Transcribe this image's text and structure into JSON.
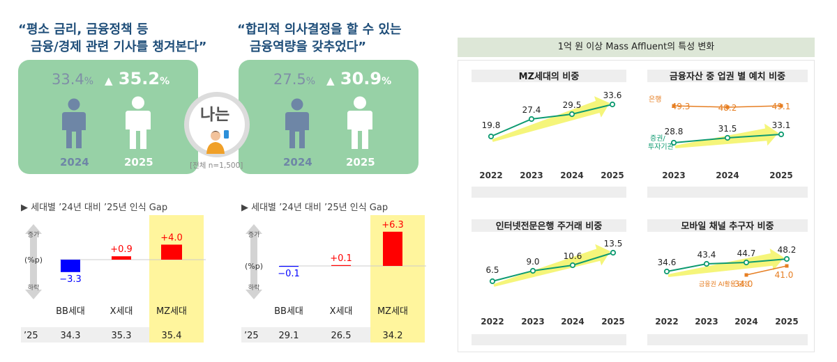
{
  "left": {
    "quote1_line1": "“평소 금리, 금융정책 등",
    "quote1_line2": "금융/경제 관련 기사를 챙겨본다”",
    "quote2_line1": "“합리적 의사결정을 할 수 있는",
    "quote2_line2": "금융역량을 갖추었다”",
    "card1": {
      "prev_value": "33.4",
      "cur_value": "35.2",
      "unit": "%",
      "arrow": "▲",
      "year_prev": "2024",
      "year_cur": "2025"
    },
    "card2": {
      "prev_value": "27.5",
      "cur_value": "30.9",
      "unit": "%",
      "arrow": "▲",
      "year_prev": "2024",
      "year_cur": "2025"
    },
    "center_label": "나는",
    "sample_note": "[전체 n=1,500]",
    "gap_title": "▶ 세대별 ’24년 대비 ’25년 인식 Gap",
    "axis_up": "증가",
    "axis_unit": "(%p)",
    "axis_down": "하락",
    "row_label": "’25",
    "colors": {
      "increase": "#ff0000",
      "decrease": "#0000ff",
      "highlight": "#fff59d",
      "card": "#97d1a6",
      "quote": "#1f4e79"
    }
  },
  "right": {
    "header": "1억 원 이상 Mass Affluent의 특성 변화",
    "colors": {
      "teal": "#0d9a70",
      "orange": "#e67e22",
      "arrow": "#f5f57a"
    }
  },
  "chart_data": [
    {
      "type": "bar",
      "title": "▶ 세대별 ’24년 대비 ’25년 인식 Gap",
      "categories": [
        "BB세대",
        "X세대",
        "MZ세대"
      ],
      "values": [
        -3.3,
        0.9,
        4.0
      ],
      "value_labels": [
        "−3.3",
        "+0.9",
        "+4.0"
      ],
      "row_label": "’25",
      "row_values": [
        "34.3",
        "35.3",
        "35.4"
      ],
      "ylabel": "(%p)",
      "highlight": "MZ세대",
      "ylim": [
        -4,
        4
      ]
    },
    {
      "type": "bar",
      "title": "▶ 세대별 ’24년 대비 ’25년 인식 Gap",
      "categories": [
        "BB세대",
        "X세대",
        "MZ세대"
      ],
      "values": [
        -0.1,
        0.1,
        6.3
      ],
      "value_labels": [
        "−0.1",
        "+0.1",
        "+6.3"
      ],
      "row_label": "’25",
      "row_values": [
        "29.1",
        "26.5",
        "34.2"
      ],
      "ylabel": "(%p)",
      "highlight": "MZ세대",
      "ylim": [
        -4,
        6.3
      ]
    },
    {
      "type": "line",
      "title": "MZ세대의 비중",
      "x": [
        "2022",
        "2023",
        "2024",
        "2025"
      ],
      "series": [
        {
          "values": [
            19.8,
            27.4,
            29.5,
            33.6
          ],
          "labels": [
            "19.8",
            "27.4",
            "29.5",
            "33.6"
          ]
        }
      ],
      "ylim": [
        15,
        37
      ]
    },
    {
      "type": "line",
      "title": "금융자산 중 업권 별 예치 비중",
      "x": [
        "2023",
        "2024",
        "2025"
      ],
      "series": [
        {
          "name": "은행",
          "values": [
            49.3,
            48.2,
            49.1
          ],
          "labels": [
            "49.3",
            "48.2",
            "49.1"
          ]
        },
        {
          "name": "증권/투자기관",
          "values": [
            28.8,
            31.5,
            33.1
          ],
          "labels": [
            "28.8",
            "31.5",
            "33.1"
          ]
        }
      ],
      "ylim": [
        20,
        55
      ]
    },
    {
      "type": "line",
      "title": "인터넷전문은행 주거래 비중",
      "x": [
        "2022",
        "2023",
        "2024",
        "2025"
      ],
      "series": [
        {
          "values": [
            6.5,
            9.0,
            10.6,
            13.5
          ],
          "labels": [
            "6.5",
            "9.0",
            "10.6",
            "13.5"
          ]
        }
      ],
      "ylim": [
        4,
        15
      ]
    },
    {
      "type": "line",
      "title": "모바일 채널 추구자 비중",
      "x": [
        "2022",
        "2023",
        "2024",
        "2025"
      ],
      "series": [
        {
          "values": [
            34.6,
            43.4,
            44.7,
            48.2
          ],
          "labels": [
            "34.6",
            "43.4",
            "44.7",
            "48.2"
          ]
        },
        {
          "name": "금융권 AI활용 긍정",
          "values": [
            null,
            null,
            34.0,
            41.0
          ],
          "labels": [
            "",
            "",
            "34.0",
            "41.0"
          ]
        }
      ],
      "ylim": [
        20,
        55
      ]
    }
  ]
}
